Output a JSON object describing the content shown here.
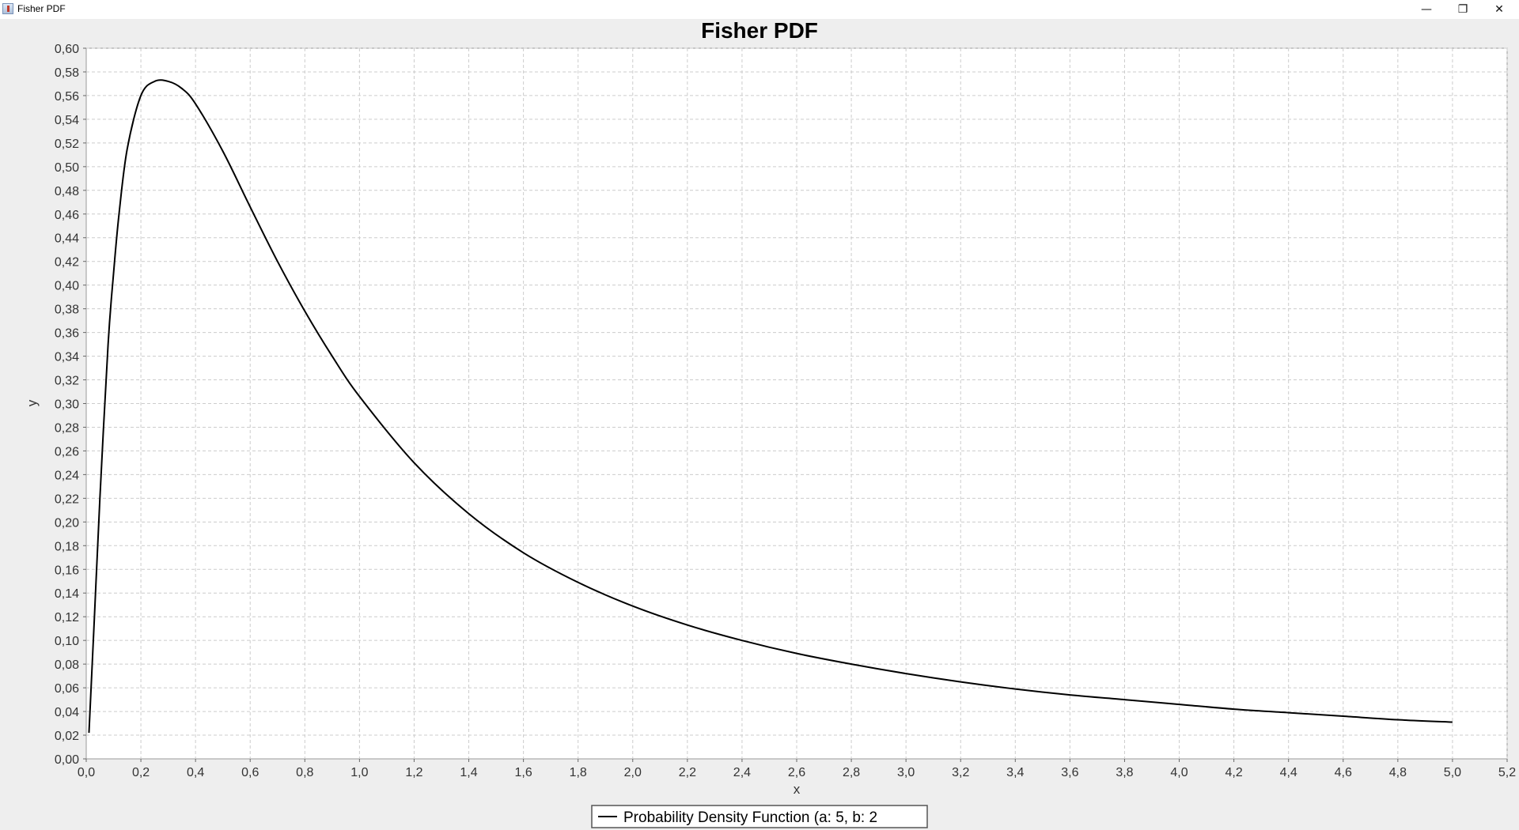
{
  "window": {
    "title": "Fisher PDF",
    "minimize_glyph": "—",
    "restore_glyph": "❐",
    "close_glyph": "✕"
  },
  "chart_data": {
    "type": "line",
    "title": "Fisher PDF",
    "xlabel": "x",
    "ylabel": "y",
    "xlim": [
      0.0,
      5.2
    ],
    "ylim": [
      0.0,
      0.6
    ],
    "x_ticks": [
      "0,0",
      "0,2",
      "0,4",
      "0,6",
      "0,8",
      "1,0",
      "1,2",
      "1,4",
      "1,6",
      "1,8",
      "2,0",
      "2,2",
      "2,4",
      "2,6",
      "2,8",
      "3,0",
      "3,2",
      "3,4",
      "3,6",
      "3,8",
      "4,0",
      "4,2",
      "4,4",
      "4,6",
      "4,8",
      "5,0",
      "5,2"
    ],
    "y_ticks": [
      "0,00",
      "0,02",
      "0,04",
      "0,06",
      "0,08",
      "0,10",
      "0,12",
      "0,14",
      "0,16",
      "0,18",
      "0,20",
      "0,22",
      "0,24",
      "0,26",
      "0,28",
      "0,30",
      "0,32",
      "0,34",
      "0,36",
      "0,38",
      "0,40",
      "0,42",
      "0,44",
      "0,46",
      "0,48",
      "0,50",
      "0,52",
      "0,54",
      "0,56",
      "0,58",
      "0,60"
    ],
    "grid": true,
    "legend_position": "bottom-center",
    "series": [
      {
        "name": "Probability Density Function (a: 5, b: 2",
        "color": "#000000",
        "x": [
          0.01,
          0.03,
          0.05,
          0.08,
          0.1,
          0.12,
          0.15,
          0.2,
          0.25,
          0.3,
          0.35,
          0.4,
          0.5,
          0.6,
          0.7,
          0.8,
          0.9,
          1.0,
          1.2,
          1.4,
          1.6,
          1.8,
          2.0,
          2.2,
          2.4,
          2.6,
          2.8,
          3.0,
          3.2,
          3.4,
          3.6,
          3.8,
          4.0,
          4.2,
          4.4,
          4.6,
          4.8,
          5.0
        ],
        "y": [
          0.022,
          0.12,
          0.22,
          0.35,
          0.41,
          0.46,
          0.515,
          0.56,
          0.572,
          0.572,
          0.566,
          0.553,
          0.513,
          0.466,
          0.42,
          0.378,
          0.34,
          0.306,
          0.25,
          0.207,
          0.174,
          0.149,
          0.129,
          0.113,
          0.1,
          0.089,
          0.08,
          0.072,
          0.065,
          0.059,
          0.054,
          0.05,
          0.046,
          0.042,
          0.039,
          0.036,
          0.033,
          0.031
        ]
      }
    ]
  },
  "colors": {
    "plot_background": "#ffffff",
    "grid": "#cccccc",
    "window_background": "#eeeeee"
  }
}
